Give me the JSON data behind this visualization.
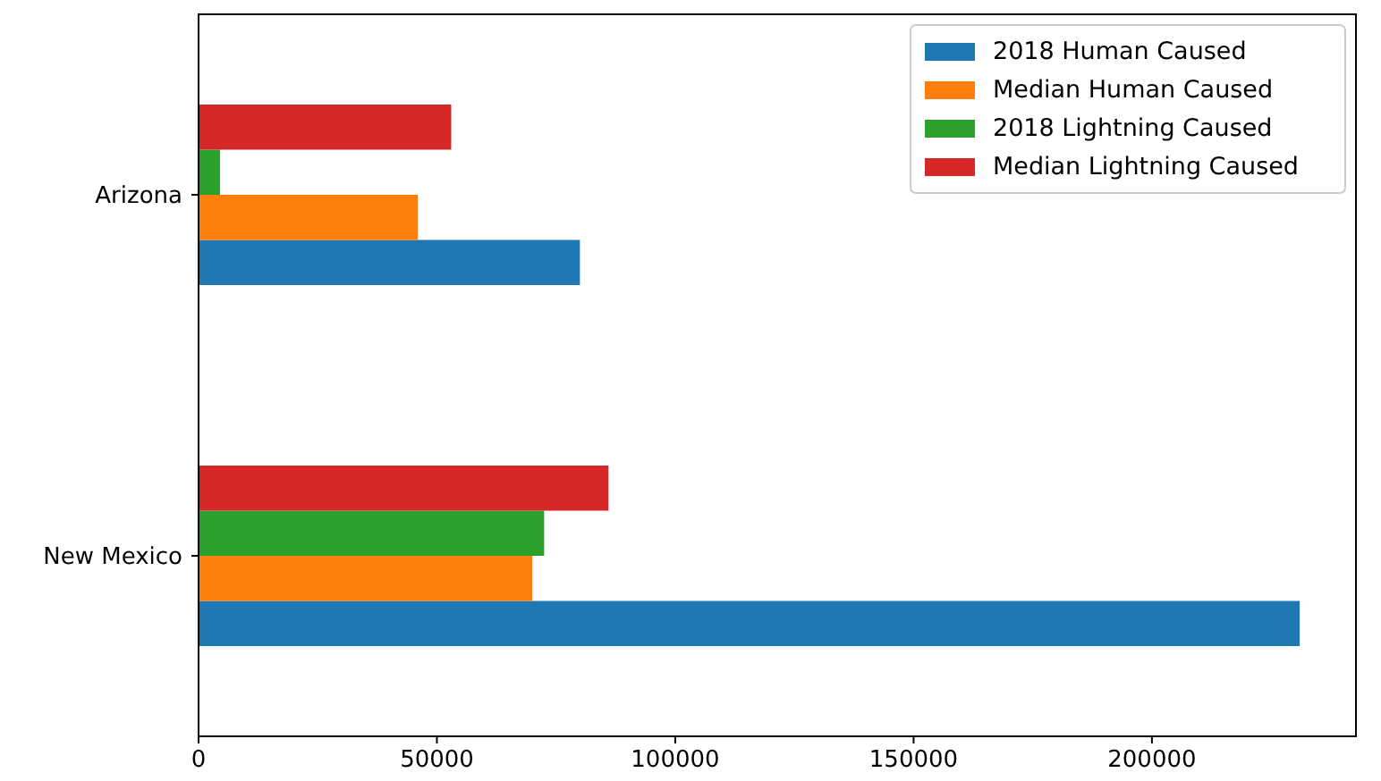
{
  "chart_data": {
    "type": "bar",
    "orientation": "horizontal",
    "categories": [
      "Arizona",
      "New Mexico"
    ],
    "series": [
      {
        "name": "2018 Human Caused",
        "color": "#1f77b4",
        "values": [
          80000,
          231000
        ]
      },
      {
        "name": "Median Human Caused",
        "color": "#ff7f0e",
        "values": [
          46000,
          70000
        ]
      },
      {
        "name": "2018 Lightning Caused",
        "color": "#2ca02c",
        "values": [
          4500,
          72500
        ]
      },
      {
        "name": "Median Lightning Caused",
        "color": "#d62728",
        "values": [
          53000,
          86000
        ]
      }
    ],
    "xlim": [
      0,
      242800
    ],
    "xticks": [
      0,
      50000,
      100000,
      150000,
      200000
    ],
    "legend": "top right",
    "grid": false
  }
}
